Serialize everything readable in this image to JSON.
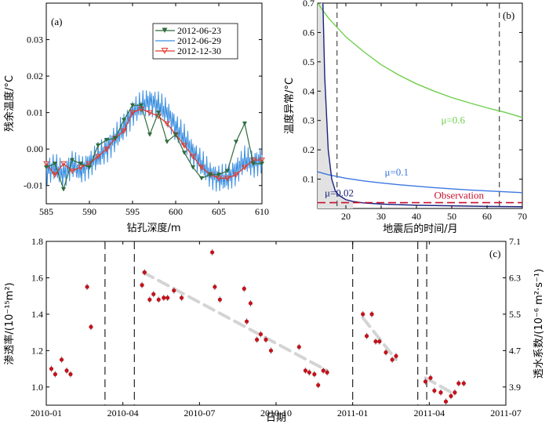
{
  "chart_data": [
    {
      "id": "a",
      "type": "line",
      "panel_label": "(a)",
      "xlabel": "钻孔深度/m",
      "ylabel": "残余温度/°C",
      "xlim": [
        585,
        610
      ],
      "ylim": [
        -0.015,
        0.04
      ],
      "xticks": [
        "585",
        "590",
        "595",
        "600",
        "605",
        "610"
      ],
      "yticks": [
        "-0.01",
        "0.00",
        "0.01",
        "0.02",
        "0.03"
      ],
      "legend_position": "top-right",
      "colors": {
        "s1": "#2e6b3b",
        "s2": "#3b8fe0",
        "s3": "#e23b2e"
      },
      "series": [
        {
          "name": "2012-06-23",
          "x": [
            585,
            586,
            587,
            588,
            589,
            590,
            591,
            592,
            593,
            594,
            595,
            596,
            597,
            598,
            599,
            600,
            601,
            602,
            603,
            604,
            605,
            606,
            607,
            608,
            609,
            610
          ],
          "values": [
            -0.005,
            -0.004,
            -0.011,
            -0.003,
            -0.004,
            -0.005,
            0.001,
            0.0025,
            0.003,
            0.008,
            0.012,
            0.012,
            0.004,
            0.01,
            0.002,
            0.004,
            -0.001,
            -0.005,
            -0.008,
            -0.007,
            -0.007,
            -0.006,
            0.002,
            0.007,
            -0.004,
            -0.004
          ]
        },
        {
          "name": "2012-06-29",
          "x": [
            585,
            586,
            587,
            588,
            589,
            590,
            591,
            592,
            593,
            594,
            595,
            596,
            597,
            598,
            599,
            600,
            601,
            602,
            603,
            604,
            605,
            606,
            607,
            608,
            609,
            610
          ],
          "values": [
            -0.006,
            -0.005,
            -0.007,
            -0.004,
            -0.006,
            -0.004,
            -0.002,
            0.0,
            0.003,
            0.006,
            0.01,
            0.012,
            0.013,
            0.012,
            0.01,
            0.006,
            0.003,
            -0.001,
            -0.004,
            -0.007,
            -0.008,
            -0.008,
            -0.006,
            -0.003,
            -0.004,
            -0.003
          ]
        },
        {
          "name": "2012-12-30",
          "x": [
            585,
            586,
            587,
            588,
            589,
            590,
            591,
            592,
            593,
            594,
            595,
            596,
            597,
            598,
            599,
            600,
            601,
            602,
            603,
            604,
            605,
            606,
            607,
            608,
            609,
            610
          ],
          "values": [
            -0.004,
            -0.007,
            -0.004,
            -0.006,
            -0.005,
            -0.004,
            -0.002,
            0.0,
            0.003,
            0.005,
            0.01,
            0.011,
            0.01,
            0.009,
            0.007,
            0.004,
            0.001,
            -0.002,
            -0.005,
            -0.007,
            -0.008,
            -0.008,
            -0.007,
            -0.005,
            -0.003,
            -0.003
          ]
        }
      ]
    },
    {
      "id": "b",
      "type": "line",
      "panel_label": "(b)",
      "xlabel": "地震后的时间/月",
      "ylabel": "温度异常/°C",
      "xlim": [
        12,
        70
      ],
      "ylim": [
        0,
        0.7
      ],
      "xticks": [
        "20",
        "30",
        "40",
        "50",
        "60",
        "70"
      ],
      "yticks": [
        "0.1",
        "0.2",
        "0.3",
        "0.4",
        "0.5",
        "0.6",
        "0.7"
      ],
      "vlines": [
        17.5,
        63.5
      ],
      "colors": {
        "mu06": "#6fcf4c",
        "mu01": "#3b78e0",
        "mu002": "#1a237e",
        "obs": "#c8102e"
      },
      "series": [
        {
          "name": "μ=0.6",
          "x": [
            12,
            15,
            20,
            25,
            30,
            35,
            40,
            45,
            50,
            55,
            60,
            65,
            70
          ],
          "values": [
            0.7,
            0.65,
            0.585,
            0.535,
            0.49,
            0.455,
            0.425,
            0.4,
            0.378,
            0.36,
            0.343,
            0.328,
            0.31
          ]
        },
        {
          "name": "μ=0.1",
          "x": [
            12,
            15,
            20,
            25,
            30,
            35,
            40,
            45,
            50,
            55,
            60,
            65,
            70
          ],
          "values": [
            0.125,
            0.115,
            0.103,
            0.094,
            0.087,
            0.081,
            0.076,
            0.071,
            0.067,
            0.063,
            0.06,
            0.057,
            0.054
          ]
        },
        {
          "name": "μ=0.02",
          "x": [
            13.5,
            14,
            15,
            16,
            17,
            18,
            20,
            22,
            25,
            30,
            40,
            50,
            60,
            70
          ],
          "values": [
            0.7,
            0.45,
            0.2,
            0.1,
            0.06,
            0.045,
            0.03,
            0.024,
            0.019,
            0.015,
            0.011,
            0.009,
            0.007,
            0.006
          ]
        },
        {
          "name": "Observation",
          "x": [
            12,
            70
          ],
          "values": [
            0.02,
            0.02
          ]
        }
      ],
      "annotations": [
        {
          "text": "μ=0.6",
          "at": [
            47,
            0.29
          ]
        },
        {
          "text": "μ=0.1",
          "at": [
            31,
            0.112
          ]
        },
        {
          "text": "μ=0.02",
          "at": [
            14,
            0.042
          ]
        },
        {
          "text": "Observation",
          "at": [
            45,
            0.033
          ]
        }
      ]
    },
    {
      "id": "c",
      "type": "scatter",
      "panel_label": "(c)",
      "xlabel": "日期",
      "ylabel": "渗透率/(10⁻¹⁵m²)",
      "ylabel_right": "透水系数/(10⁻⁶ m²·s⁻¹)",
      "xlim": [
        0,
        18
      ],
      "ylim": [
        0.9,
        1.8
      ],
      "xticks": [
        "2010-01",
        "2010-04",
        "2010-07",
        "2010-10",
        "2011-01",
        "2011-04",
        "2011-07"
      ],
      "yticks": [
        "1.0",
        "1.2",
        "1.4",
        "1.6",
        "1.8"
      ],
      "yticks_right": [
        "3.9",
        "4.7",
        "5.5",
        "6.3",
        "7.1"
      ],
      "vlines": [
        2.3,
        3.45,
        12.0,
        14.55,
        14.9
      ],
      "colors": {
        "point": "#c0141c",
        "trend": "#d4d4d4"
      },
      "points": {
        "x": [
          0.2,
          0.35,
          0.6,
          0.8,
          0.95,
          1.6,
          1.75,
          3.75,
          3.85,
          4.05,
          4.2,
          4.4,
          4.6,
          4.75,
          5.0,
          5.3,
          6.5,
          6.6,
          6.8,
          7.75,
          7.85,
          8.0,
          8.25,
          8.4,
          8.6,
          8.8,
          9.9,
          10.15,
          10.3,
          10.5,
          10.65,
          10.85,
          11.0,
          12.4,
          12.55,
          12.75,
          12.9,
          13.05,
          13.3,
          13.55,
          13.7,
          14.85,
          15.05,
          15.2,
          15.45,
          15.65,
          15.85,
          16.0,
          16.15,
          16.35
        ],
        "y": [
          1.1,
          1.07,
          1.15,
          1.09,
          1.07,
          1.55,
          1.33,
          1.56,
          1.63,
          1.48,
          1.51,
          1.48,
          1.49,
          1.49,
          1.53,
          1.49,
          1.74,
          1.55,
          1.48,
          1.54,
          1.36,
          1.46,
          1.26,
          1.29,
          1.26,
          1.2,
          1.22,
          1.09,
          1.08,
          1.07,
          1.01,
          1.09,
          1.08,
          1.4,
          1.28,
          1.4,
          1.25,
          1.25,
          1.19,
          1.15,
          1.17,
          1.03,
          1.05,
          0.98,
          0.97,
          0.92,
          0.95,
          0.97,
          1.02,
          1.02
        ]
      },
      "trends": [
        {
          "x": [
            3.8,
            11.0
          ],
          "values": [
            1.63,
            1.09
          ]
        },
        {
          "x": [
            12.4,
            13.7
          ],
          "values": [
            1.38,
            1.15
          ]
        },
        {
          "x": [
            14.85,
            16.0
          ],
          "values": [
            1.05,
            0.96
          ]
        }
      ]
    }
  ]
}
